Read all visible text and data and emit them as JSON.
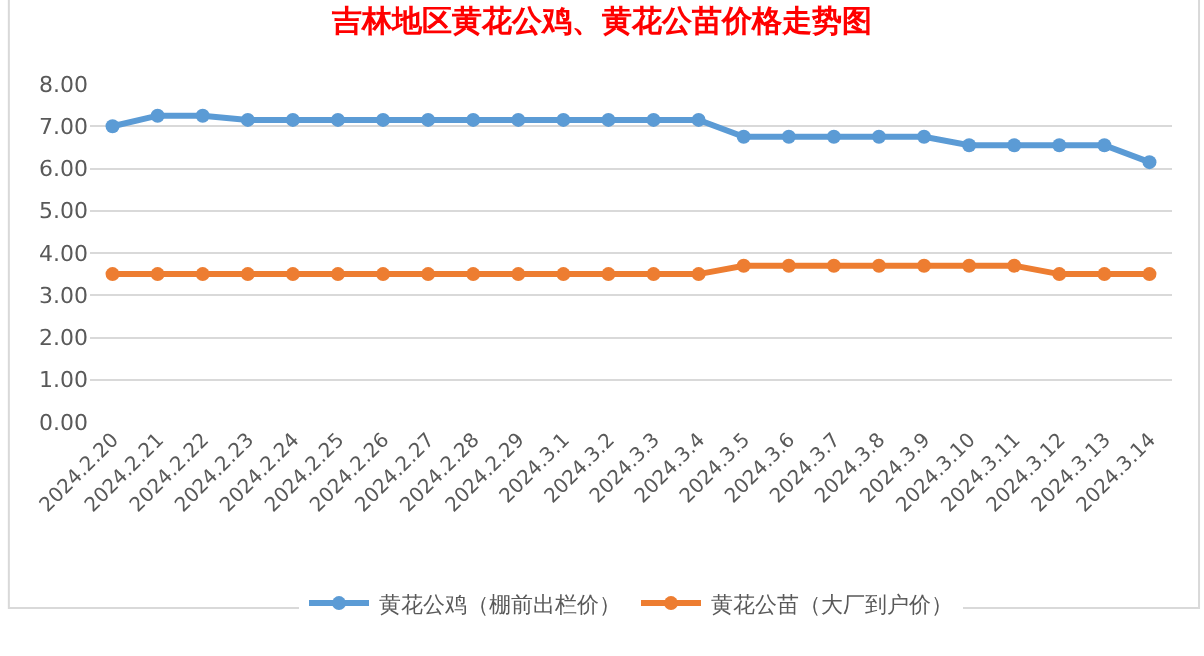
{
  "chart_data": {
    "type": "line",
    "title": "吉林地区黄花公鸡、黄花公苗价格走势图",
    "categories": [
      "2024.2.20",
      "2024.2.21",
      "2024.2.22",
      "2024.2.23",
      "2024.2.24",
      "2024.2.25",
      "2024.2.26",
      "2024.2.27",
      "2024.2.28",
      "2024.2.29",
      "2024.3.1",
      "2024.3.2",
      "2024.3.3",
      "2024.3.4",
      "2024.3.5",
      "2024.3.6",
      "2024.3.7",
      "2024.3.8",
      "2024.3.9",
      "2024.3.10",
      "2024.3.11",
      "2024.3.12",
      "2024.3.13",
      "2024.3.14"
    ],
    "series": [
      {
        "name": "黄花公鸡（棚前出栏价）",
        "color": "#5b9bd5",
        "values": [
          7.0,
          7.25,
          7.25,
          7.15,
          7.15,
          7.15,
          7.15,
          7.15,
          7.15,
          7.15,
          7.15,
          7.15,
          7.15,
          7.15,
          6.75,
          6.75,
          6.75,
          6.75,
          6.75,
          6.55,
          6.55,
          6.55,
          6.55,
          6.15
        ]
      },
      {
        "name": "黄花公苗（大厂到户价）",
        "color": "#ed7d31",
        "values": [
          3.5,
          3.5,
          3.5,
          3.5,
          3.5,
          3.5,
          3.5,
          3.5,
          3.5,
          3.5,
          3.5,
          3.5,
          3.5,
          3.5,
          3.7,
          3.7,
          3.7,
          3.7,
          3.7,
          3.7,
          3.7,
          3.5,
          3.5,
          3.5
        ]
      }
    ],
    "ylim": [
      0,
      8
    ],
    "yticks": [
      {
        "value": 0,
        "label": "0.00"
      },
      {
        "value": 1,
        "label": "1.00"
      },
      {
        "value": 2,
        "label": "2.00"
      },
      {
        "value": 3,
        "label": "3.00"
      },
      {
        "value": 4,
        "label": "4.00"
      },
      {
        "value": 5,
        "label": "5.00"
      },
      {
        "value": 6,
        "label": "6.00"
      },
      {
        "value": 7,
        "label": "7.00"
      },
      {
        "value": 8,
        "label": "8.00"
      }
    ],
    "grid": "y",
    "legend": "bottom",
    "marker": "circle",
    "line_style": "solid"
  }
}
